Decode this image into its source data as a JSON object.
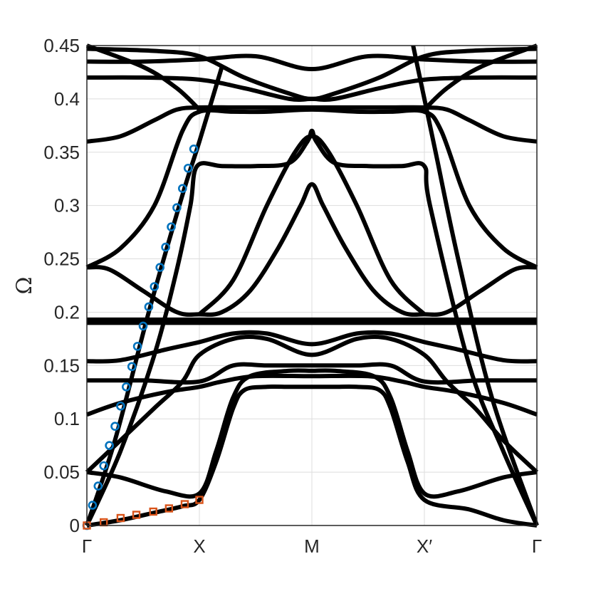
{
  "chart_data": {
    "type": "line",
    "title": "",
    "xlabel": "",
    "ylabel": "Ω",
    "x_ticks": [
      "Γ",
      "X",
      "M",
      "X′",
      "Γ"
    ],
    "y_ticks": [
      "0",
      "0.05",
      "0.1",
      "0.15",
      "0.2",
      "0.25",
      "0.3",
      "0.35",
      "0.4",
      "0.45"
    ],
    "ylim": [
      0,
      0.45
    ],
    "xlim": [
      0,
      4
    ],
    "grid": true,
    "colors": {
      "bands": "#000000",
      "circles": "#0072BD",
      "squares": "#D95319",
      "grid": "#dddddd",
      "axes": "#262626"
    },
    "bands": [
      [
        [
          0,
          0
        ],
        [
          0.25,
          0.08
        ],
        [
          0.55,
          0.2
        ],
        [
          0.85,
          0.31
        ],
        [
          1.0,
          0.36
        ],
        [
          1.2,
          0.43
        ]
      ],
      [
        [
          0,
          0
        ],
        [
          0.3,
          0.07
        ],
        [
          0.6,
          0.16
        ],
        [
          0.8,
          0.24
        ],
        [
          0.92,
          0.3
        ],
        [
          0.98,
          0.337
        ],
        [
          1.2,
          0.337
        ],
        [
          1.5,
          0.337
        ],
        [
          1.8,
          0.34
        ],
        [
          1.96,
          0.36
        ],
        [
          2.0,
          0.37
        ],
        [
          2.04,
          0.36
        ],
        [
          2.2,
          0.34
        ],
        [
          2.5,
          0.337
        ],
        [
          2.8,
          0.337
        ],
        [
          3.0,
          0.337
        ],
        [
          3.05,
          0.3
        ],
        [
          3.4,
          0.15
        ],
        [
          3.7,
          0.07
        ],
        [
          4.0,
          0
        ]
      ],
      [
        [
          0,
          0
        ],
        [
          0.3,
          0.005
        ],
        [
          0.6,
          0.012
        ],
        [
          0.85,
          0.018
        ],
        [
          1.0,
          0.024
        ],
        [
          1.15,
          0.06
        ],
        [
          1.3,
          0.11
        ],
        [
          1.4,
          0.127
        ],
        [
          1.6,
          0.13
        ],
        [
          1.8,
          0.13
        ],
        [
          2.0,
          0.13
        ],
        [
          2.2,
          0.13
        ],
        [
          2.4,
          0.13
        ],
        [
          2.6,
          0.127
        ],
        [
          2.7,
          0.11
        ],
        [
          2.85,
          0.06
        ],
        [
          3.0,
          0.024
        ],
        [
          3.4,
          0.015
        ],
        [
          3.7,
          0.005
        ],
        [
          4.0,
          0
        ]
      ],
      [
        [
          0,
          0.05
        ],
        [
          0.3,
          0.045
        ],
        [
          0.7,
          0.032
        ],
        [
          1.0,
          0.03
        ],
        [
          1.15,
          0.07
        ],
        [
          1.3,
          0.12
        ],
        [
          1.45,
          0.14
        ],
        [
          1.8,
          0.145
        ],
        [
          2.0,
          0.145
        ],
        [
          2.2,
          0.145
        ],
        [
          2.55,
          0.14
        ],
        [
          2.7,
          0.12
        ],
        [
          2.85,
          0.07
        ],
        [
          3.0,
          0.03
        ],
        [
          3.3,
          0.032
        ],
        [
          3.7,
          0.045
        ],
        [
          4.0,
          0.05
        ]
      ],
      [
        [
          0,
          0.05
        ],
        [
          0.3,
          0.08
        ],
        [
          0.6,
          0.11
        ],
        [
          0.85,
          0.135
        ],
        [
          1.0,
          0.16
        ],
        [
          1.3,
          0.175
        ],
        [
          1.6,
          0.175
        ],
        [
          2.0,
          0.16
        ],
        [
          2.4,
          0.175
        ],
        [
          2.7,
          0.175
        ],
        [
          3.0,
          0.16
        ],
        [
          3.2,
          0.135
        ],
        [
          3.45,
          0.11
        ],
        [
          3.7,
          0.08
        ],
        [
          4.0,
          0.05
        ]
      ],
      [
        [
          0,
          0.104
        ],
        [
          0.3,
          0.115
        ],
        [
          0.7,
          0.125
        ],
        [
          1.0,
          0.13
        ],
        [
          1.2,
          0.135
        ],
        [
          1.5,
          0.14
        ],
        [
          2.0,
          0.14
        ],
        [
          2.5,
          0.14
        ],
        [
          2.8,
          0.135
        ],
        [
          3.0,
          0.13
        ],
        [
          3.3,
          0.125
        ],
        [
          3.7,
          0.115
        ],
        [
          4.0,
          0.104
        ]
      ],
      [
        [
          0,
          0.136
        ],
        [
          0.5,
          0.136
        ],
        [
          1.0,
          0.135
        ],
        [
          1.3,
          0.15
        ],
        [
          1.6,
          0.15
        ],
        [
          2.0,
          0.15
        ],
        [
          2.4,
          0.15
        ],
        [
          2.7,
          0.15
        ],
        [
          3.0,
          0.135
        ],
        [
          3.5,
          0.136
        ],
        [
          4.0,
          0.136
        ]
      ],
      [
        [
          0,
          0.154
        ],
        [
          0.3,
          0.155
        ],
        [
          0.7,
          0.165
        ],
        [
          1.0,
          0.172
        ],
        [
          1.3,
          0.18
        ],
        [
          1.6,
          0.18
        ],
        [
          2.0,
          0.17
        ],
        [
          2.4,
          0.18
        ],
        [
          2.7,
          0.18
        ],
        [
          3.0,
          0.172
        ],
        [
          3.3,
          0.165
        ],
        [
          3.7,
          0.155
        ],
        [
          4.0,
          0.154
        ]
      ],
      [
        [
          0,
          0.19
        ],
        [
          1.0,
          0.19
        ],
        [
          2.0,
          0.19
        ],
        [
          3.0,
          0.19
        ],
        [
          4.0,
          0.19
        ]
      ],
      [
        [
          0,
          0.193
        ],
        [
          1.0,
          0.193
        ],
        [
          2.0,
          0.193
        ],
        [
          3.0,
          0.193
        ],
        [
          4.0,
          0.193
        ]
      ],
      [
        [
          0,
          0.242
        ],
        [
          0.2,
          0.24
        ],
        [
          0.5,
          0.22
        ],
        [
          0.8,
          0.2
        ],
        [
          1.0,
          0.198
        ],
        [
          1.2,
          0.2
        ],
        [
          1.45,
          0.22
        ],
        [
          1.7,
          0.26
        ],
        [
          1.9,
          0.3
        ],
        [
          2.0,
          0.32
        ],
        [
          2.1,
          0.3
        ],
        [
          2.3,
          0.26
        ],
        [
          2.55,
          0.22
        ],
        [
          2.8,
          0.2
        ],
        [
          3.0,
          0.198
        ],
        [
          3.2,
          0.2
        ],
        [
          3.5,
          0.22
        ],
        [
          3.8,
          0.24
        ],
        [
          4.0,
          0.242
        ]
      ],
      [
        [
          0,
          0.242
        ],
        [
          0.3,
          0.26
        ],
        [
          0.6,
          0.3
        ],
        [
          0.85,
          0.37
        ],
        [
          1.0,
          0.388
        ],
        [
          1.3,
          0.388
        ],
        [
          1.6,
          0.388
        ],
        [
          2.0,
          0.39
        ],
        [
          2.4,
          0.388
        ],
        [
          2.7,
          0.388
        ],
        [
          3.0,
          0.388
        ],
        [
          3.15,
          0.37
        ],
        [
          3.4,
          0.3
        ],
        [
          3.7,
          0.26
        ],
        [
          4.0,
          0.242
        ]
      ],
      [
        [
          0,
          0.36
        ],
        [
          0.3,
          0.365
        ],
        [
          0.6,
          0.38
        ],
        [
          0.8,
          0.39
        ],
        [
          1.0,
          0.392
        ],
        [
          1.3,
          0.392
        ],
        [
          1.6,
          0.392
        ],
        [
          2.0,
          0.392
        ],
        [
          2.4,
          0.392
        ],
        [
          2.7,
          0.392
        ],
        [
          3.0,
          0.392
        ],
        [
          3.2,
          0.39
        ],
        [
          3.4,
          0.38
        ],
        [
          3.7,
          0.365
        ],
        [
          4.0,
          0.36
        ]
      ],
      [
        [
          1.0,
          0.198
        ],
        [
          1.3,
          0.23
        ],
        [
          1.6,
          0.3
        ],
        [
          1.85,
          0.35
        ],
        [
          2.0,
          0.365
        ],
        [
          2.15,
          0.35
        ],
        [
          2.4,
          0.3
        ],
        [
          2.7,
          0.23
        ],
        [
          3.0,
          0.198
        ]
      ],
      [
        [
          0,
          0.45
        ],
        [
          0.5,
          0.43
        ],
        [
          0.8,
          0.41
        ],
        [
          1.0,
          0.39
        ]
      ],
      [
        [
          4.0,
          0.45
        ],
        [
          3.5,
          0.43
        ],
        [
          3.2,
          0.41
        ],
        [
          3.0,
          0.39
        ]
      ],
      [
        [
          0,
          0.42
        ],
        [
          0.5,
          0.42
        ],
        [
          1.0,
          0.418
        ],
        [
          1.4,
          0.41
        ],
        [
          1.8,
          0.4
        ],
        [
          2.0,
          0.4
        ],
        [
          2.2,
          0.4
        ],
        [
          2.6,
          0.41
        ],
        [
          3.0,
          0.418
        ],
        [
          3.5,
          0.42
        ],
        [
          4.0,
          0.42
        ]
      ],
      [
        [
          0,
          0.435
        ],
        [
          0.5,
          0.435
        ],
        [
          1.0,
          0.437
        ],
        [
          1.5,
          0.44
        ],
        [
          2.0,
          0.428
        ],
        [
          2.5,
          0.44
        ],
        [
          3.0,
          0.437
        ],
        [
          3.5,
          0.435
        ],
        [
          4.0,
          0.435
        ]
      ],
      [
        [
          0,
          0.447
        ],
        [
          0.6,
          0.445
        ],
        [
          1.0,
          0.44
        ],
        [
          1.4,
          0.42
        ],
        [
          1.8,
          0.405
        ],
        [
          2.0,
          0.4
        ],
        [
          2.2,
          0.405
        ],
        [
          2.6,
          0.42
        ],
        [
          3.0,
          0.44
        ],
        [
          3.4,
          0.445
        ],
        [
          4.0,
          0.447
        ]
      ],
      [
        [
          4.0,
          0
        ],
        [
          3.6,
          0.12
        ],
        [
          3.3,
          0.25
        ],
        [
          3.1,
          0.35
        ],
        [
          3.0,
          0.4
        ],
        [
          2.9,
          0.45
        ]
      ]
    ],
    "circles": [
      [
        0,
        0
      ],
      [
        0.05,
        0.019
      ],
      [
        0.1,
        0.037
      ],
      [
        0.15,
        0.056
      ],
      [
        0.2,
        0.075
      ],
      [
        0.25,
        0.093
      ],
      [
        0.3,
        0.112
      ],
      [
        0.35,
        0.13
      ],
      [
        0.4,
        0.149
      ],
      [
        0.45,
        0.168
      ],
      [
        0.5,
        0.187
      ],
      [
        0.55,
        0.205
      ],
      [
        0.6,
        0.224
      ],
      [
        0.65,
        0.242
      ],
      [
        0.7,
        0.261
      ],
      [
        0.75,
        0.28
      ],
      [
        0.8,
        0.298
      ],
      [
        0.85,
        0.316
      ],
      [
        0.9,
        0.335
      ],
      [
        0.95,
        0.353
      ]
    ],
    "squares": [
      [
        0,
        0
      ],
      [
        0.15,
        0.003
      ],
      [
        0.3,
        0.007
      ],
      [
        0.44,
        0.01
      ],
      [
        0.59,
        0.013
      ],
      [
        0.73,
        0.016
      ],
      [
        0.87,
        0.02
      ],
      [
        1.0,
        0.024
      ]
    ]
  }
}
